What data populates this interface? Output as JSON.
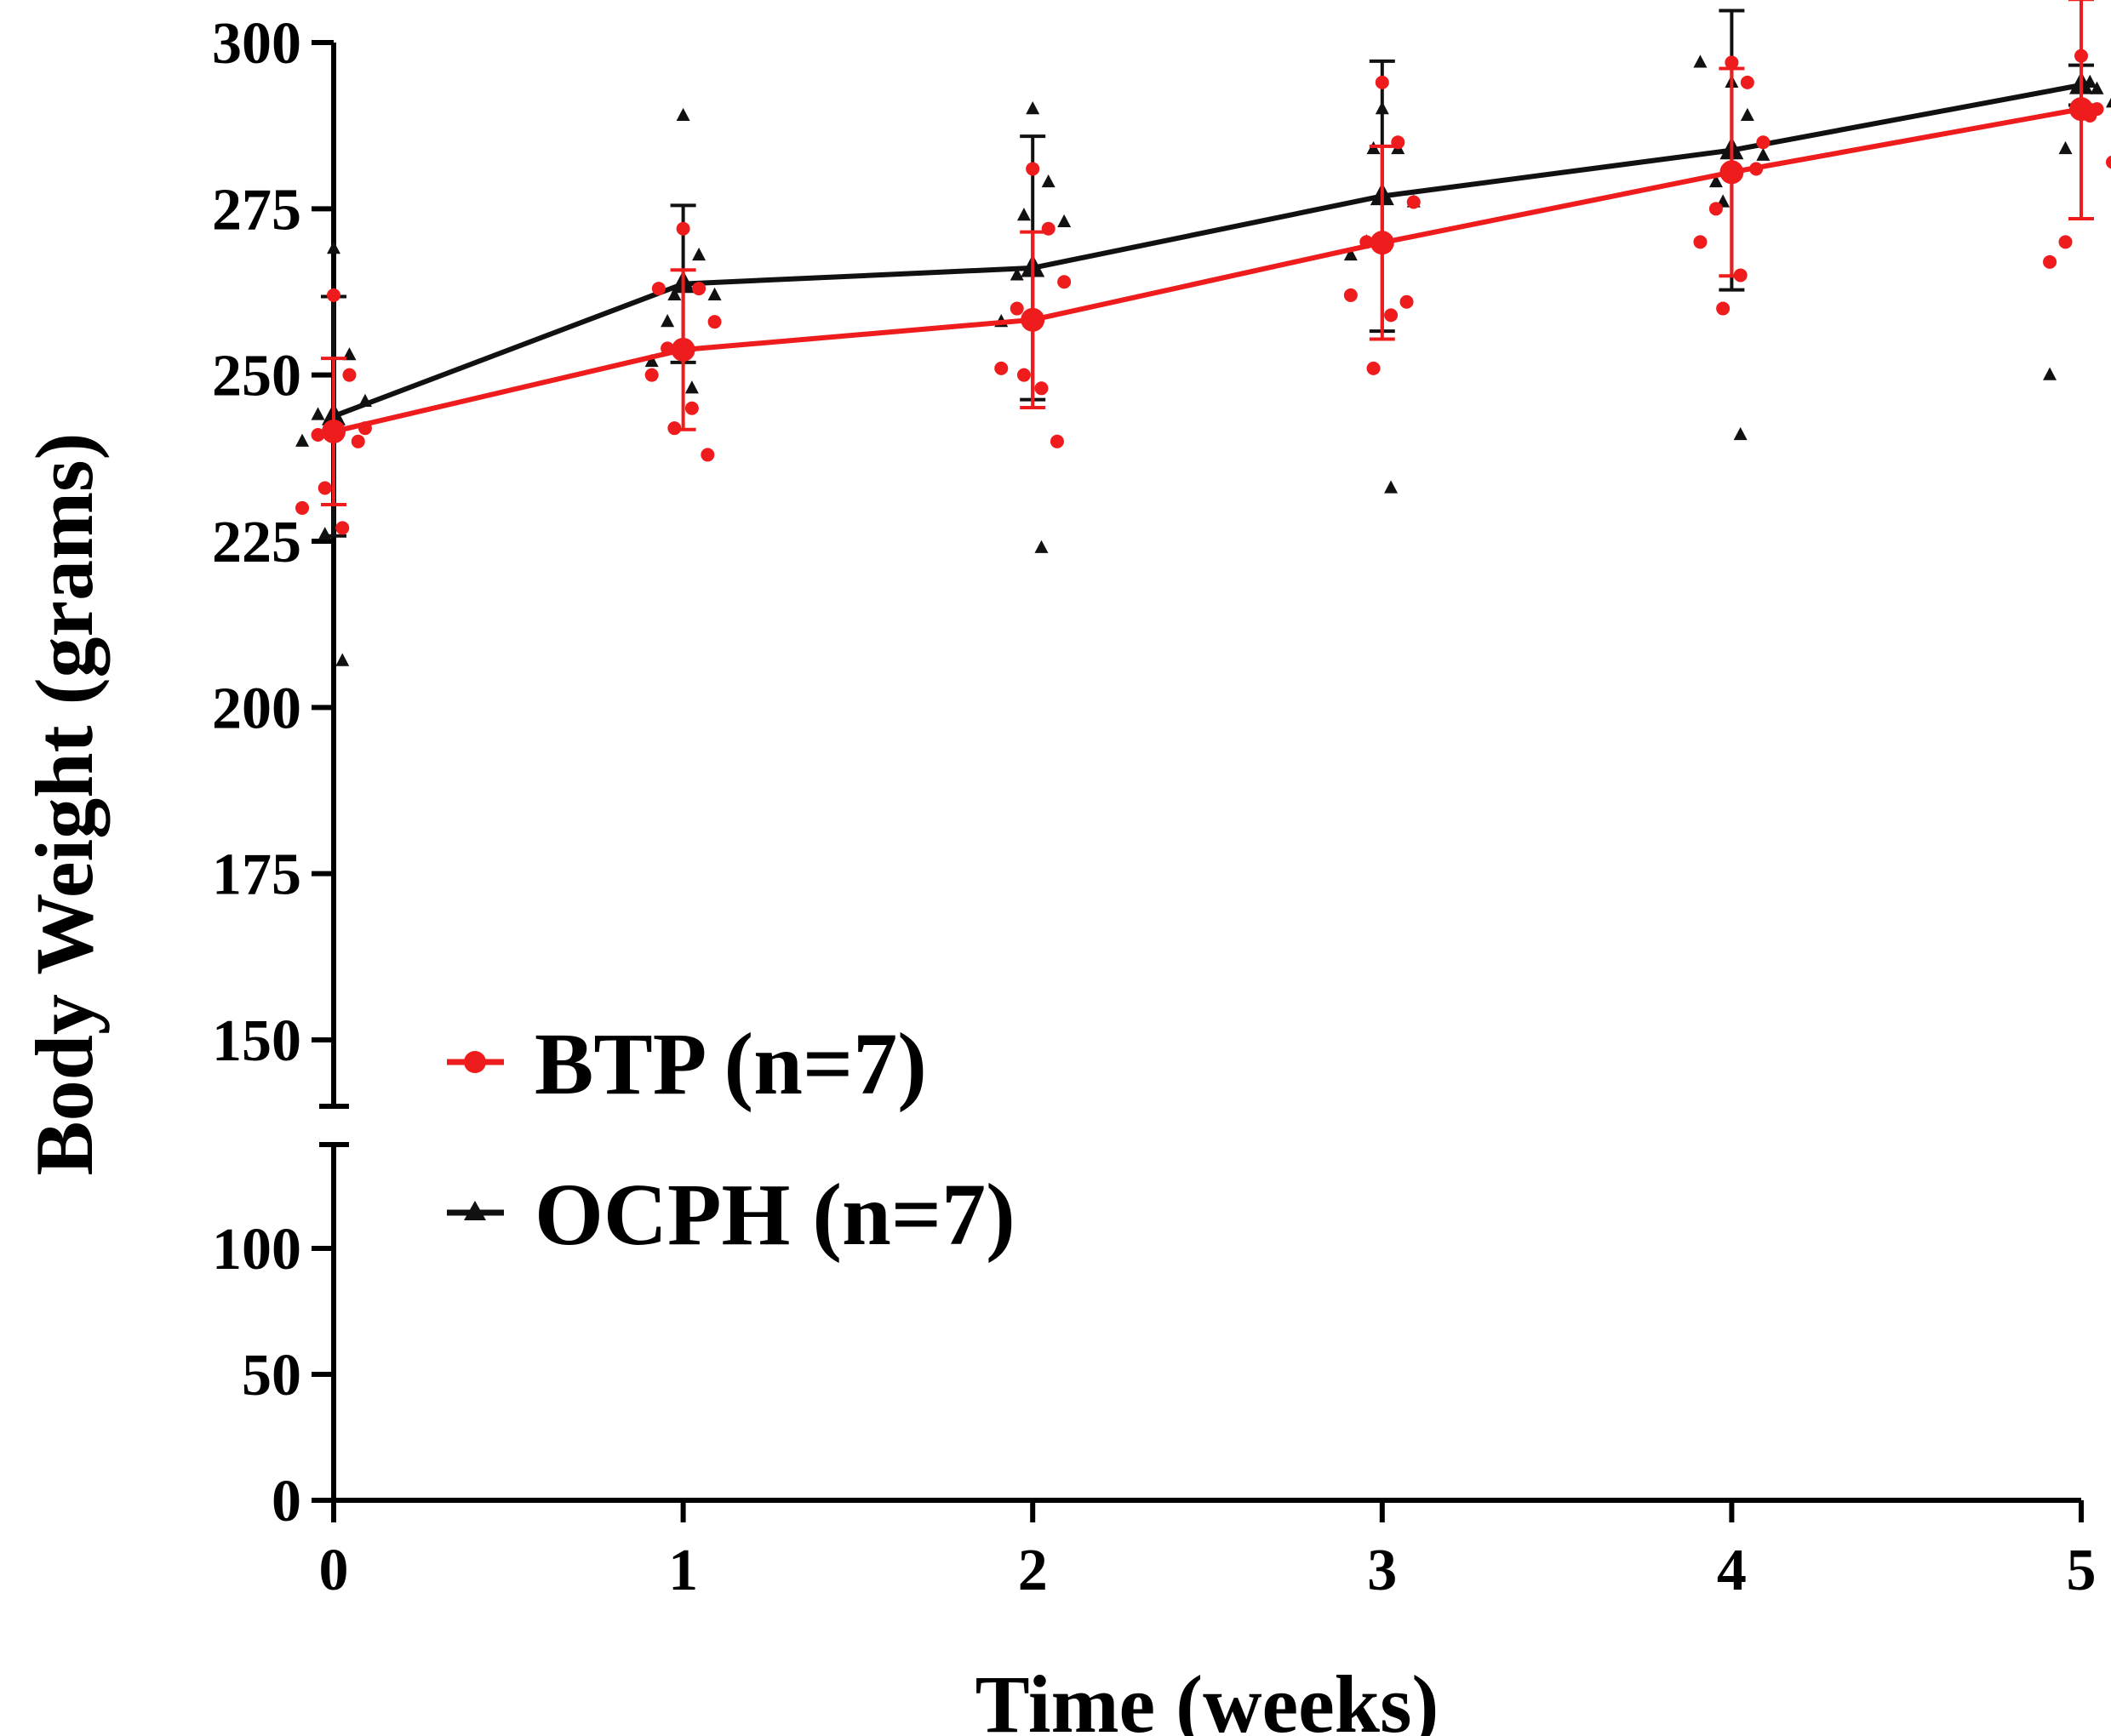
{
  "chart_data": {
    "type": "line",
    "xlabel": "Time (weeks)",
    "ylabel": "Body Weight (grams)",
    "x": [
      0,
      1,
      2,
      3,
      4,
      5
    ],
    "xlim": [
      0,
      5
    ],
    "x_ticks": [
      "0",
      "1",
      "2",
      "3",
      "4",
      "5"
    ],
    "ylim": [
      0,
      300
    ],
    "y_axis_break": [
      140,
      150
    ],
    "y_ticks_upper": [
      "150",
      "175",
      "200",
      "225",
      "250",
      "275",
      "300"
    ],
    "y_ticks_lower": [
      "0",
      "50",
      "100"
    ],
    "grid": false,
    "legend_position": "bottom-left",
    "series": [
      {
        "name": "BTP (n=7)",
        "color": "#ee1c1c",
        "marker": "circle",
        "mean": [
          241.5,
          253.8,
          258.3,
          269.9,
          280.5,
          290.0
        ],
        "sd": [
          11.0,
          12.0,
          13.2,
          14.5,
          15.6,
          16.5
        ],
        "points": [
          [
            262,
            250,
            242,
            241,
            230,
            227,
            233,
            240
          ],
          [
            272,
            263,
            258,
            254,
            250,
            245,
            242,
            238,
            263
          ],
          [
            281,
            272,
            264,
            260,
            251,
            248,
            250,
            240
          ],
          [
            294,
            285,
            276,
            270,
            262,
            259,
            251,
            261
          ],
          [
            297,
            294,
            285,
            275,
            270,
            265,
            260,
            281
          ],
          [
            298,
            290,
            282,
            270,
            267,
            289
          ]
        ]
      },
      {
        "name": "OCPH (n=7)",
        "color": "#111111",
        "marker": "triangle",
        "mean": [
          243.8,
          263.7,
          266.1,
          276.9,
          283.8,
          293.6
        ],
        "sd": [
          18.0,
          11.8,
          19.8,
          20.3,
          21.0,
          3.0
        ],
        "points": [
          [
            269,
            253,
            246,
            244,
            240,
            207,
            226
          ],
          [
            289,
            268,
            262,
            258,
            252,
            248,
            262
          ],
          [
            290,
            279,
            273,
            265,
            258,
            224,
            274
          ],
          [
            290,
            284,
            276,
            270,
            268,
            233,
            284
          ],
          [
            294,
            289,
            283,
            279,
            297,
            241,
            276
          ],
          [
            294,
            293,
            291,
            284,
            250,
            294
          ]
        ]
      }
    ]
  }
}
